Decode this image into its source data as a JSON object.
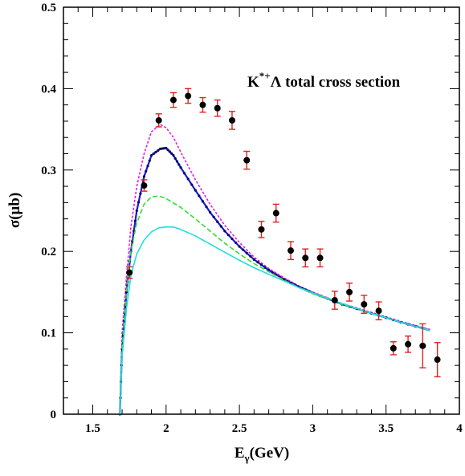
{
  "chart_data": {
    "type": "line",
    "title": "",
    "annotation": {
      "base": "K",
      "superscript": "*+",
      "rest": "Λ total cross section"
    },
    "xlabel": {
      "main": "E",
      "sub": "γ",
      "unit": "(GeV)"
    },
    "ylabel": "σ(μb)",
    "xlim": [
      1.3,
      4.0
    ],
    "ylim": [
      0,
      0.5
    ],
    "xticks": [
      {
        "value": 1.5,
        "label": "1.5"
      },
      {
        "value": 2.0,
        "label": "2"
      },
      {
        "value": 2.5,
        "label": "2.5"
      },
      {
        "value": 3.0,
        "label": "3"
      },
      {
        "value": 3.5,
        "label": "3.5"
      },
      {
        "value": 4.0,
        "label": "4"
      }
    ],
    "yticks": [
      {
        "value": 0,
        "label": "0"
      },
      {
        "value": 0.1,
        "label": "0.1"
      },
      {
        "value": 0.2,
        "label": "0.2"
      },
      {
        "value": 0.3,
        "label": "0.3"
      },
      {
        "value": 0.4,
        "label": "0.4"
      },
      {
        "value": 0.5,
        "label": "0.5"
      }
    ],
    "grid": false,
    "series": [
      {
        "style": "dashed",
        "color": "#e020e0",
        "points": [
          [
            1.685,
            0.0
          ],
          [
            1.7,
            0.1
          ],
          [
            1.73,
            0.17
          ],
          [
            1.76,
            0.23
          ],
          [
            1.8,
            0.28
          ],
          [
            1.85,
            0.32
          ],
          [
            1.9,
            0.347
          ],
          [
            1.96,
            0.356
          ],
          [
            2.0,
            0.352
          ],
          [
            2.05,
            0.34
          ],
          [
            2.1,
            0.322
          ],
          [
            2.2,
            0.288
          ],
          [
            2.3,
            0.258
          ],
          [
            2.4,
            0.232
          ],
          [
            2.5,
            0.211
          ],
          [
            2.6,
            0.193
          ],
          [
            2.7,
            0.179
          ],
          [
            2.8,
            0.168
          ],
          [
            2.9,
            0.158
          ],
          [
            3.0,
            0.15
          ],
          [
            3.2,
            0.136
          ],
          [
            3.4,
            0.125
          ],
          [
            3.6,
            0.114
          ],
          [
            3.8,
            0.104
          ]
        ]
      },
      {
        "style": "solid-dotted",
        "color": "#1a1ad8",
        "points": [
          [
            1.685,
            0.0
          ],
          [
            1.7,
            0.08
          ],
          [
            1.73,
            0.15
          ],
          [
            1.76,
            0.2
          ],
          [
            1.8,
            0.25
          ],
          [
            1.85,
            0.292
          ],
          [
            1.9,
            0.318
          ],
          [
            1.96,
            0.326
          ],
          [
            2.0,
            0.327
          ],
          [
            2.05,
            0.318
          ],
          [
            2.1,
            0.303
          ],
          [
            2.2,
            0.275
          ],
          [
            2.3,
            0.248
          ],
          [
            2.4,
            0.225
          ],
          [
            2.5,
            0.206
          ],
          [
            2.6,
            0.19
          ],
          [
            2.7,
            0.177
          ],
          [
            2.8,
            0.166
          ],
          [
            2.9,
            0.157
          ],
          [
            3.0,
            0.149
          ],
          [
            3.2,
            0.135
          ],
          [
            3.4,
            0.124
          ],
          [
            3.6,
            0.113
          ],
          [
            3.8,
            0.103
          ]
        ]
      },
      {
        "style": "dashed",
        "color": "#33dd33",
        "points": [
          [
            1.685,
            0.0
          ],
          [
            1.7,
            0.08
          ],
          [
            1.73,
            0.15
          ],
          [
            1.76,
            0.2
          ],
          [
            1.8,
            0.235
          ],
          [
            1.85,
            0.258
          ],
          [
            1.9,
            0.267
          ],
          [
            1.95,
            0.268
          ],
          [
            2.0,
            0.265
          ],
          [
            2.1,
            0.254
          ],
          [
            2.2,
            0.24
          ],
          [
            2.3,
            0.225
          ],
          [
            2.4,
            0.21
          ],
          [
            2.5,
            0.197
          ],
          [
            2.6,
            0.185
          ],
          [
            2.7,
            0.175
          ],
          [
            2.8,
            0.165
          ],
          [
            2.9,
            0.156
          ],
          [
            3.0,
            0.148
          ],
          [
            3.2,
            0.135
          ],
          [
            3.4,
            0.124
          ],
          [
            3.6,
            0.113
          ],
          [
            3.8,
            0.103
          ]
        ]
      },
      {
        "style": "solid",
        "color": "#22dddd",
        "points": [
          [
            1.685,
            0.0
          ],
          [
            1.7,
            0.07
          ],
          [
            1.73,
            0.13
          ],
          [
            1.76,
            0.17
          ],
          [
            1.8,
            0.197
          ],
          [
            1.85,
            0.214
          ],
          [
            1.9,
            0.224
          ],
          [
            1.95,
            0.229
          ],
          [
            2.0,
            0.23
          ],
          [
            2.05,
            0.23
          ],
          [
            2.1,
            0.227
          ],
          [
            2.2,
            0.219
          ],
          [
            2.3,
            0.209
          ],
          [
            2.4,
            0.199
          ],
          [
            2.5,
            0.189
          ],
          [
            2.6,
            0.18
          ],
          [
            2.7,
            0.172
          ],
          [
            2.8,
            0.164
          ],
          [
            2.9,
            0.156
          ],
          [
            3.0,
            0.149
          ],
          [
            3.2,
            0.136
          ],
          [
            3.4,
            0.124
          ],
          [
            3.6,
            0.113
          ],
          [
            3.8,
            0.103
          ]
        ]
      }
    ],
    "data_points": {
      "marker_color": "#000000",
      "errorbar_color": "#dd2222",
      "points": [
        {
          "x": 1.75,
          "y": 0.174,
          "err": 0.007
        },
        {
          "x": 1.85,
          "y": 0.281,
          "err": 0.007
        },
        {
          "x": 1.95,
          "y": 0.361,
          "err": 0.008
        },
        {
          "x": 2.05,
          "y": 0.386,
          "err": 0.009
        },
        {
          "x": 2.15,
          "y": 0.391,
          "err": 0.009
        },
        {
          "x": 2.25,
          "y": 0.38,
          "err": 0.009
        },
        {
          "x": 2.35,
          "y": 0.376,
          "err": 0.01
        },
        {
          "x": 2.45,
          "y": 0.361,
          "err": 0.011
        },
        {
          "x": 2.55,
          "y": 0.312,
          "err": 0.011
        },
        {
          "x": 2.65,
          "y": 0.227,
          "err": 0.01
        },
        {
          "x": 2.75,
          "y": 0.247,
          "err": 0.011
        },
        {
          "x": 2.85,
          "y": 0.201,
          "err": 0.011
        },
        {
          "x": 2.95,
          "y": 0.192,
          "err": 0.011
        },
        {
          "x": 3.05,
          "y": 0.192,
          "err": 0.011
        },
        {
          "x": 3.15,
          "y": 0.14,
          "err": 0.011
        },
        {
          "x": 3.25,
          "y": 0.15,
          "err": 0.011
        },
        {
          "x": 3.35,
          "y": 0.135,
          "err": 0.011
        },
        {
          "x": 3.45,
          "y": 0.127,
          "err": 0.011
        },
        {
          "x": 3.55,
          "y": 0.081,
          "err": 0.008
        },
        {
          "x": 3.65,
          "y": 0.086,
          "err": 0.01
        },
        {
          "x": 3.75,
          "y": 0.084,
          "err": 0.027
        },
        {
          "x": 3.85,
          "y": 0.067,
          "err": 0.021
        }
      ]
    }
  }
}
